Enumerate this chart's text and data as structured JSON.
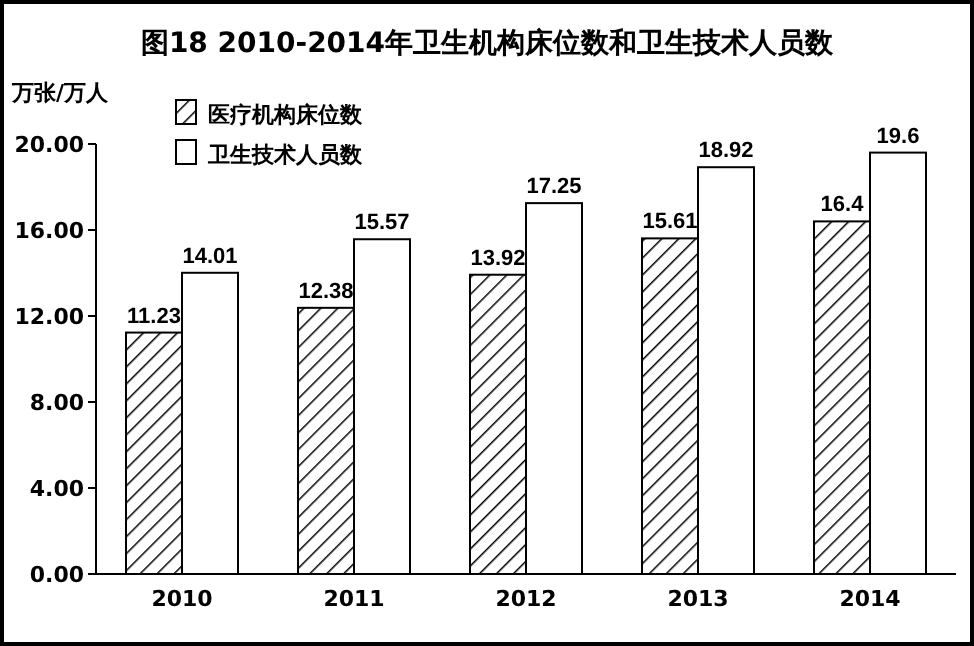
{
  "chart_data": {
    "type": "bar",
    "title": "图18   2010-2014年卫生机构床位数和卫生技术人员数",
    "ylabel": "万张/万人",
    "categories": [
      "2010",
      "2011",
      "2012",
      "2013",
      "2014"
    ],
    "series": [
      {
        "name": "医疗机构床位数",
        "color": "#000000",
        "values": [
          11.23,
          12.38,
          13.92,
          15.61,
          16.4
        ]
      },
      {
        "name": "卫生技术人员数",
        "color": "#ffffff",
        "values": [
          14.01,
          15.57,
          17.25,
          18.92,
          19.6
        ]
      }
    ],
    "ylim": [
      0,
      20
    ],
    "yticks": [
      {
        "value": 0,
        "label": "0.00"
      },
      {
        "value": 4,
        "label": "4.00"
      },
      {
        "value": 8,
        "label": "8.00"
      },
      {
        "value": 12,
        "label": "12.00"
      },
      {
        "value": 16,
        "label": "16.00"
      },
      {
        "value": 20,
        "label": "20.00"
      }
    ],
    "data_labels": true,
    "legend": "top left",
    "grid": false
  }
}
